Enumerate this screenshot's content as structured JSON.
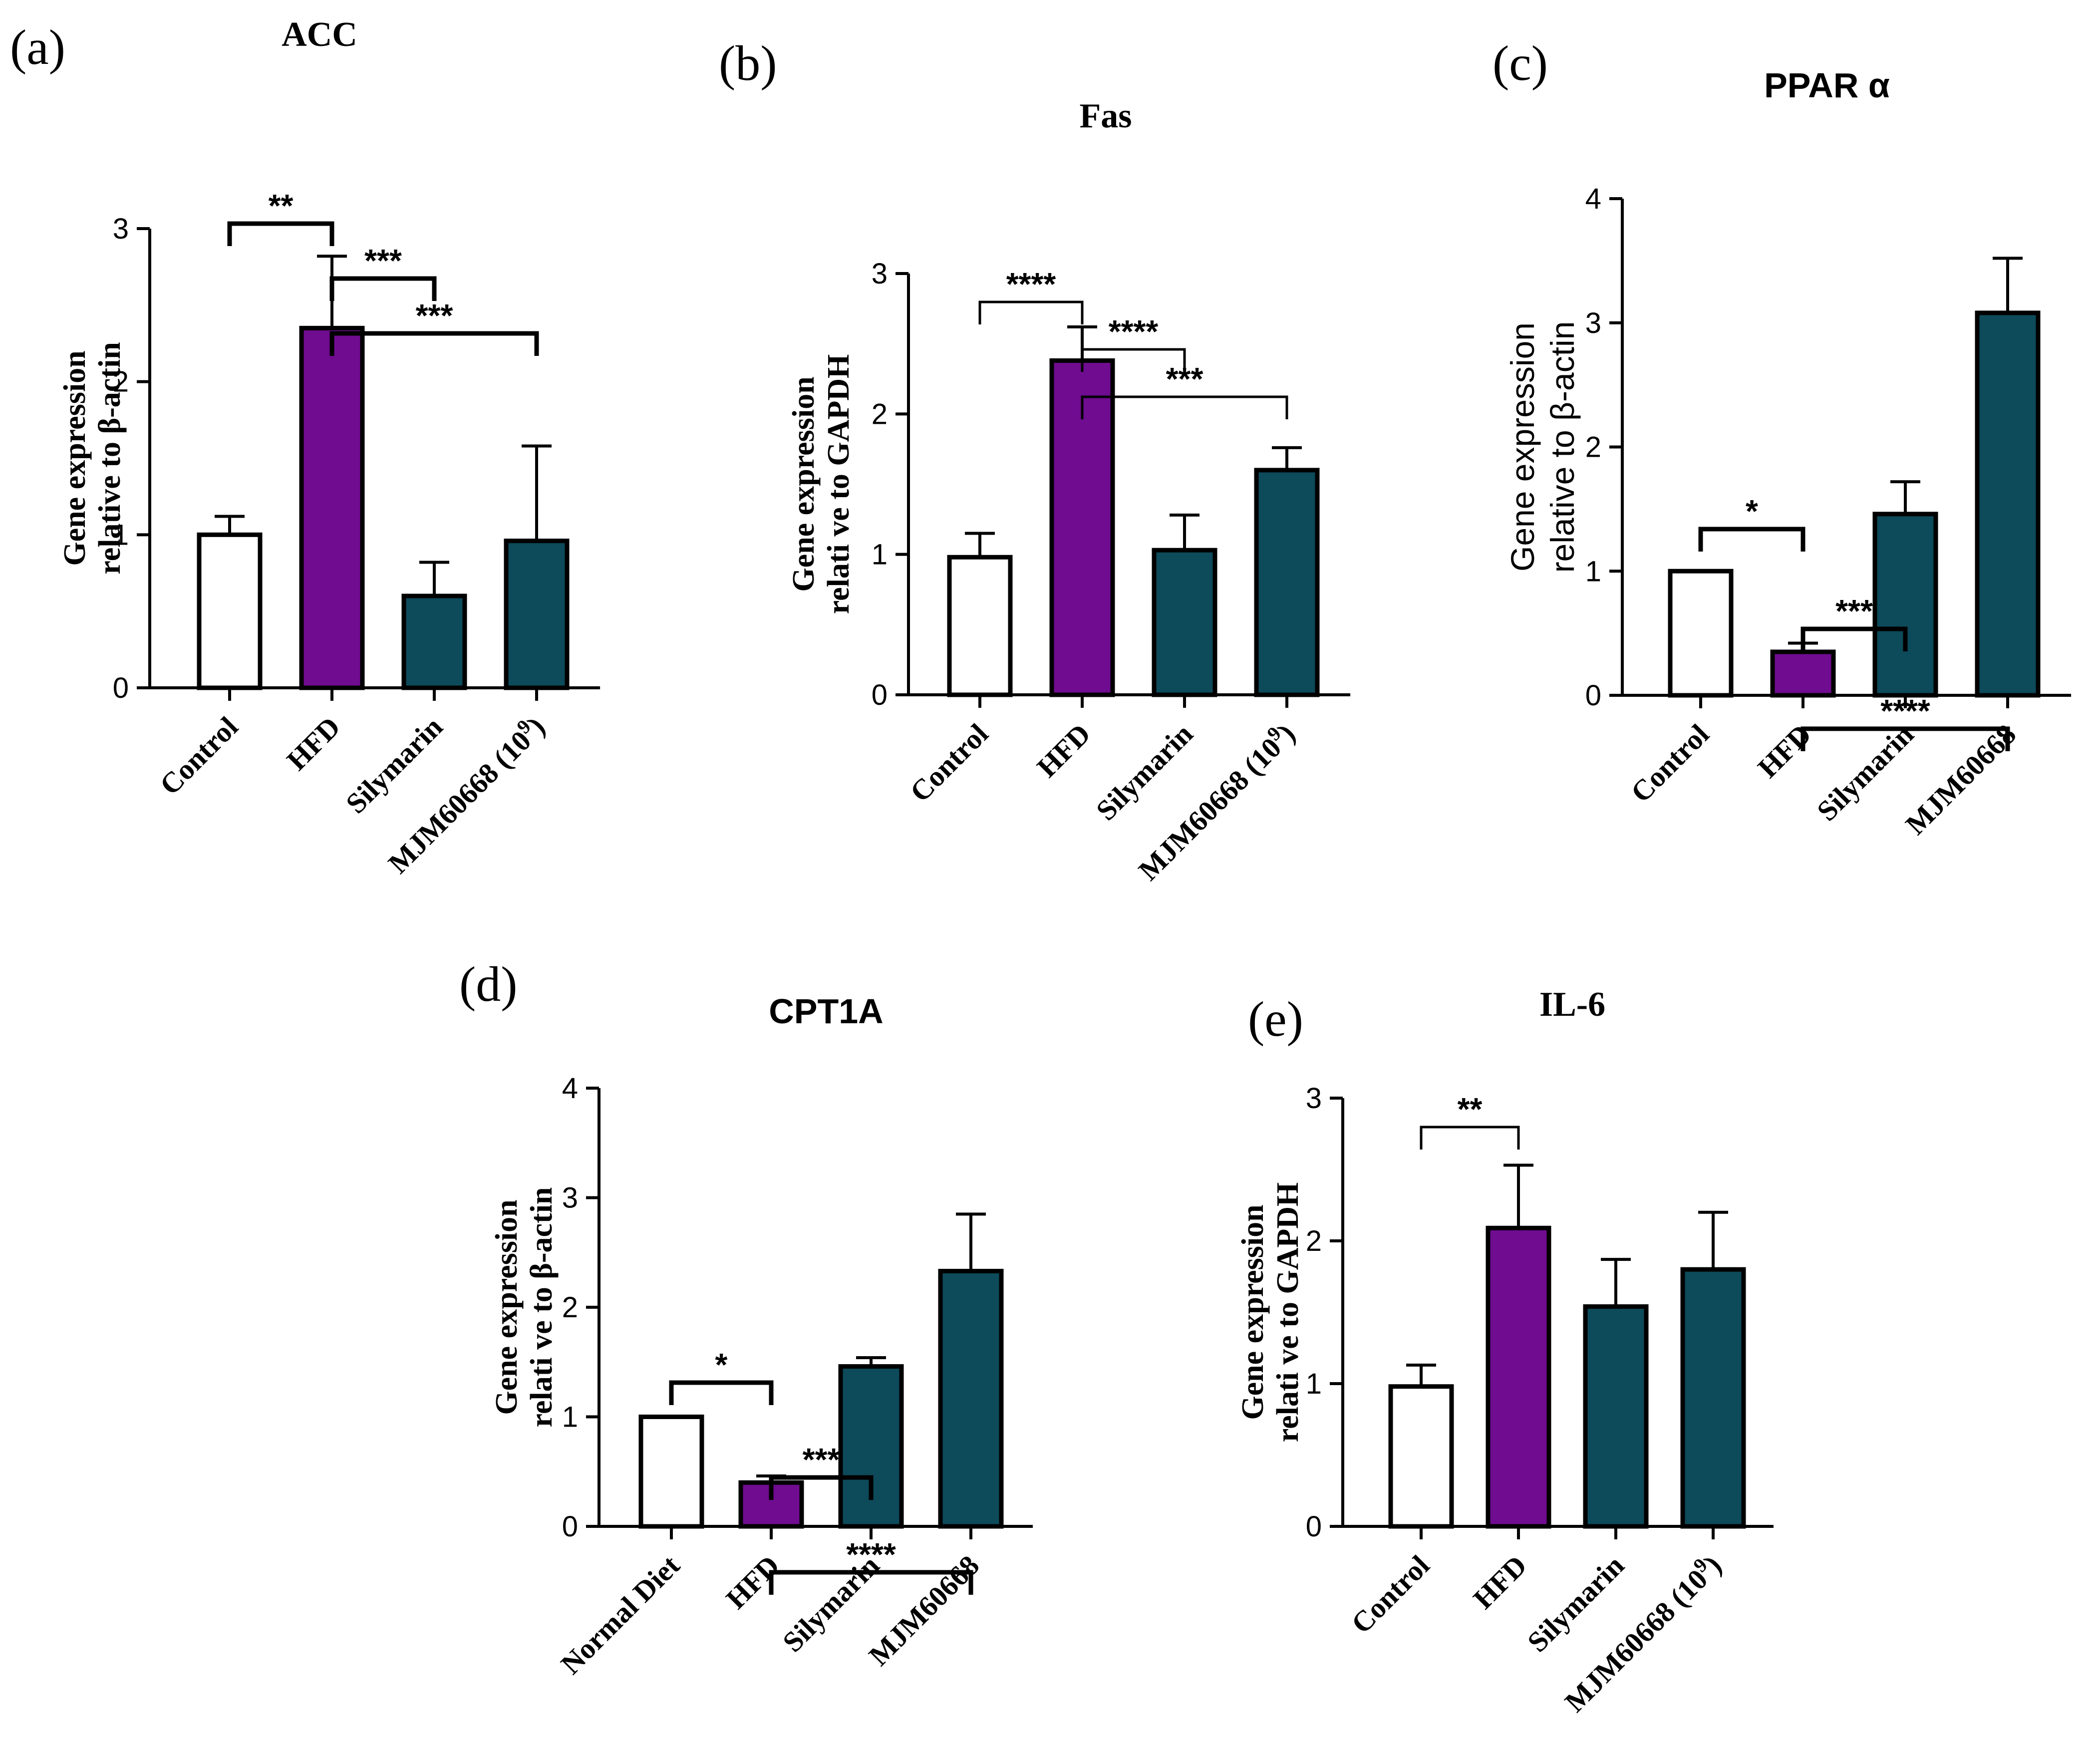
{
  "colors": {
    "control": "#ffffff",
    "hfd": "#6f0c8f",
    "treatment": "#0d4a5a",
    "stroke": "#000000"
  },
  "chart_data": [
    {
      "panel": "(a)",
      "type": "bar",
      "title": "ACC",
      "ylabel": [
        "Gene expression",
        "relative to β-actin"
      ],
      "ylim": [
        0,
        3
      ],
      "yticks": [
        "0",
        "1",
        "2",
        "3"
      ],
      "categories": [
        "Control",
        "HFD",
        "Silymarin",
        "MJM60668 (10"
      ],
      "superscripts": [
        "",
        "",
        "",
        "9"
      ],
      "after_sup": [
        "",
        "",
        "",
        ")"
      ],
      "values": [
        1.0,
        2.35,
        0.6,
        0.96
      ],
      "errors": [
        0.12,
        0.47,
        0.22,
        0.62
      ],
      "significance": [
        {
          "from": 0,
          "to": 1,
          "label": "**"
        },
        {
          "from": 1,
          "to": 2,
          "label": "***"
        },
        {
          "from": 1,
          "to": 3,
          "label": "***"
        }
      ]
    },
    {
      "panel": "(b)",
      "type": "bar",
      "title": "Fas",
      "ylabel": [
        "Gene expression",
        "relati ve to GAPDH"
      ],
      "ylim": [
        0,
        3
      ],
      "yticks": [
        "0",
        "1",
        "2",
        "3"
      ],
      "categories": [
        "Control",
        "HFD",
        "Silymarin",
        "MJM60668 (10"
      ],
      "superscripts": [
        "",
        "",
        "",
        "9"
      ],
      "after_sup": [
        "",
        "",
        "",
        ")"
      ],
      "values": [
        0.98,
        2.38,
        1.03,
        1.6
      ],
      "errors": [
        0.17,
        0.24,
        0.25,
        0.16
      ],
      "significance": [
        {
          "from": 0,
          "to": 1,
          "label": "****"
        },
        {
          "from": 1,
          "to": 2,
          "label": "****"
        },
        {
          "from": 1,
          "to": 3,
          "label": "***"
        }
      ]
    },
    {
      "panel": "(c)",
      "type": "bar",
      "title": "PPAR α",
      "ylabel": [
        "Gene expression",
        "relative to β-actin"
      ],
      "ylim": [
        0,
        4
      ],
      "yticks": [
        "0",
        "1",
        "2",
        "3",
        "4"
      ],
      "categories": [
        "Control",
        "HFD",
        "Silymarin",
        "MJM60668"
      ],
      "superscripts": [
        "",
        "",
        "",
        ""
      ],
      "after_sup": [
        "",
        "",
        "",
        ""
      ],
      "values": [
        1.0,
        0.35,
        1.46,
        3.08
      ],
      "errors": [
        0.0,
        0.07,
        0.26,
        0.44
      ],
      "significance": [
        {
          "from": 0,
          "to": 1,
          "label": "*"
        },
        {
          "from": 1,
          "to": 2,
          "label": "***"
        },
        {
          "from": 1,
          "to": 3,
          "label": "****"
        }
      ]
    },
    {
      "panel": "(d)",
      "type": "bar",
      "title": "CPT1A",
      "ylabel": [
        "Gene expression",
        "relati ve to β-actin"
      ],
      "ylim": [
        0,
        4
      ],
      "yticks": [
        "0",
        "1",
        "2",
        "3",
        "4"
      ],
      "categories": [
        "Normal Diet",
        "HFD",
        "Silymarin",
        "MJM60668"
      ],
      "superscripts": [
        "",
        "",
        "",
        ""
      ],
      "after_sup": [
        "",
        "",
        "",
        ""
      ],
      "values": [
        1.0,
        0.4,
        1.46,
        2.33
      ],
      "errors": [
        0.0,
        0.06,
        0.08,
        0.52
      ],
      "significance": [
        {
          "from": 0,
          "to": 1,
          "label": "*"
        },
        {
          "from": 1,
          "to": 2,
          "label": "***"
        },
        {
          "from": 1,
          "to": 3,
          "label": "****"
        }
      ]
    },
    {
      "panel": "(e)",
      "type": "bar",
      "title": "IL-6",
      "ylabel": [
        "Gene expression",
        "relati ve to GAPDH"
      ],
      "ylim": [
        0,
        3
      ],
      "yticks": [
        "0",
        "1",
        "2",
        "3"
      ],
      "categories": [
        "Control",
        "HFD",
        "Silymarin",
        "MJM60668 (10"
      ],
      "superscripts": [
        "",
        "",
        "",
        "9"
      ],
      "after_sup": [
        "",
        "",
        "",
        ")"
      ],
      "values": [
        0.98,
        2.09,
        1.54,
        1.8
      ],
      "errors": [
        0.15,
        0.44,
        0.33,
        0.4
      ],
      "significance": [
        {
          "from": 0,
          "to": 1,
          "label": "**"
        }
      ]
    }
  ]
}
